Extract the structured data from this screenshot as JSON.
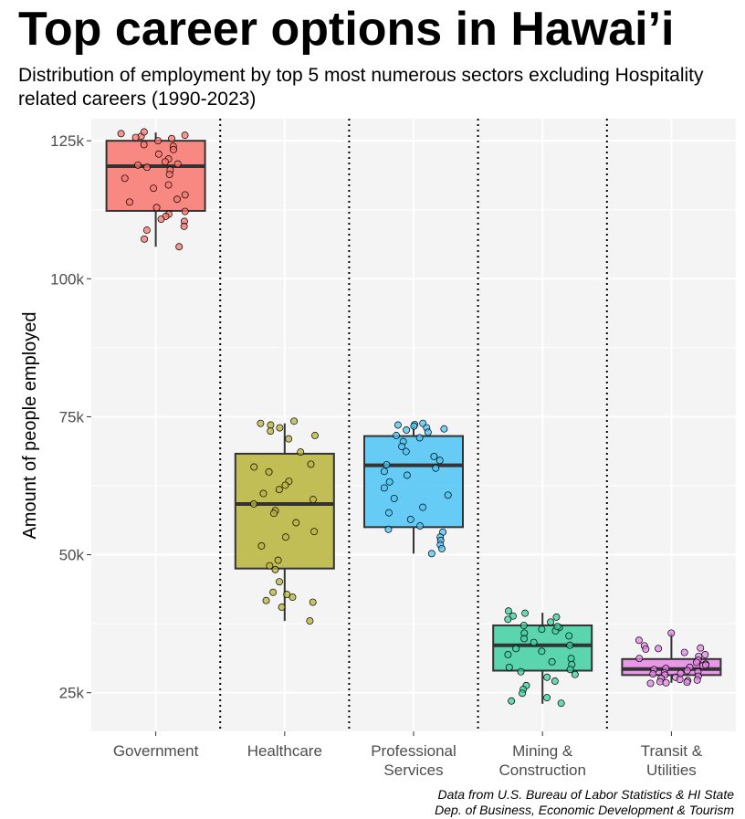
{
  "title": "Top career options in Hawai’i",
  "subtitle": "Distribution of employment by top 5 most numerous sectors excluding Hospitality related careers (1990-2023)",
  "caption_line1": "Data from U.S. Bureau of Labor Statistics & HI State",
  "caption_line2": "Dep. of Business, Economic Development & Tourism",
  "chart_data": {
    "type": "box",
    "ylabel": "Amount of people employed",
    "xlabel": "",
    "ylim": [
      18000,
      129000
    ],
    "y_ticks": [
      {
        "value": 25000,
        "label": "25k"
      },
      {
        "value": 50000,
        "label": "50k"
      },
      {
        "value": 75000,
        "label": "75k"
      },
      {
        "value": 100000,
        "label": "100k"
      },
      {
        "value": 125000,
        "label": "125k"
      }
    ],
    "grid": true,
    "legend": "none",
    "categories": [
      {
        "label_lines": [
          "Government"
        ],
        "color": "#F8766D",
        "box": {
          "min": 105800,
          "q1": 112300,
          "median": 120400,
          "q3": 125000,
          "max": 126500
        },
        "points": [
          126300,
          126000,
          125800,
          125600,
          125400,
          125000,
          124300,
          124000,
          123400,
          122600,
          121700,
          121200,
          120800,
          120600,
          120200,
          119700,
          118900,
          118200,
          117000,
          116400,
          115200,
          114400,
          113900,
          112900,
          112200,
          111700,
          111300,
          110800,
          110400,
          109500,
          108800,
          107200,
          105800,
          126600
        ]
      },
      {
        "label_lines": [
          "Healthcare"
        ],
        "color": "#B8B43A",
        "box": {
          "min": 38000,
          "q1": 47500,
          "median": 59200,
          "q3": 68300,
          "max": 73800
        },
        "points": [
          73800,
          73500,
          73000,
          72400,
          71600,
          71000,
          68600,
          66400,
          65900,
          65000,
          63300,
          62600,
          61800,
          61100,
          60000,
          59200,
          58000,
          57500,
          55800,
          54200,
          53200,
          51600,
          49000,
          48000,
          47300,
          45100,
          43200,
          42800,
          42300,
          41700,
          41400,
          40500,
          38000,
          74200
        ]
      },
      {
        "label_lines": [
          "Professional",
          "Services"
        ],
        "color": "#4DC4F5",
        "box": {
          "min": 50200,
          "q1": 55000,
          "median": 66200,
          "q3": 71500,
          "max": 73800
        },
        "points": [
          73800,
          73600,
          73300,
          73000,
          72800,
          72600,
          72200,
          71600,
          71200,
          70500,
          69600,
          68700,
          67800,
          67100,
          66300,
          65700,
          65100,
          64400,
          63200,
          62100,
          60800,
          60200,
          58600,
          57600,
          56400,
          55200,
          54600,
          54100,
          53200,
          52600,
          51800,
          51100,
          50200,
          73500
        ]
      },
      {
        "label_lines": [
          "Mining &",
          "Construction"
        ],
        "color": "#3ECFA0",
        "box": {
          "min": 23000,
          "q1": 29000,
          "median": 33600,
          "q3": 37200,
          "max": 39500
        },
        "points": [
          39800,
          39400,
          38900,
          38300,
          37800,
          37200,
          36800,
          36500,
          36200,
          35800,
          35300,
          34800,
          34100,
          33600,
          33000,
          32500,
          31900,
          31200,
          30600,
          30100,
          29600,
          29200,
          28800,
          28300,
          27800,
          27100,
          26300,
          25600,
          24900,
          24100,
          23500,
          23100,
          38700,
          37000
        ]
      },
      {
        "label_lines": [
          "Transit &",
          "Utilities"
        ],
        "color": "#E786E8",
        "box": {
          "min": 26800,
          "q1": 28200,
          "median": 29300,
          "q3": 31100,
          "max": 35800
        },
        "points": [
          35800,
          34500,
          33500,
          33100,
          32900,
          32300,
          31600,
          31200,
          30900,
          30500,
          30200,
          29900,
          29600,
          29400,
          29200,
          29000,
          28800,
          28600,
          28400,
          28200,
          28000,
          27800,
          27600,
          27400,
          27200,
          27000,
          26900,
          26800,
          26700,
          33000,
          31900,
          30000,
          28500,
          27300
        ]
      }
    ]
  }
}
